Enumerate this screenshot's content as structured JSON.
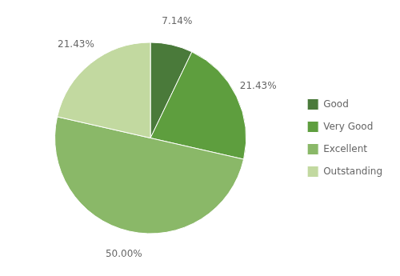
{
  "chart_data": {
    "type": "pie",
    "categories": [
      "Good",
      "Very Good",
      "Excellent",
      "Outstanding"
    ],
    "values": [
      7.14,
      21.43,
      50.0,
      21.43
    ],
    "value_labels": [
      "7.14%",
      "21.43%",
      "50.00%",
      "21.43%"
    ],
    "colors": [
      "#4a7a3a",
      "#5e9e3e",
      "#8ab868",
      "#c2d9a0"
    ],
    "data_labels": true,
    "legend": "right"
  }
}
